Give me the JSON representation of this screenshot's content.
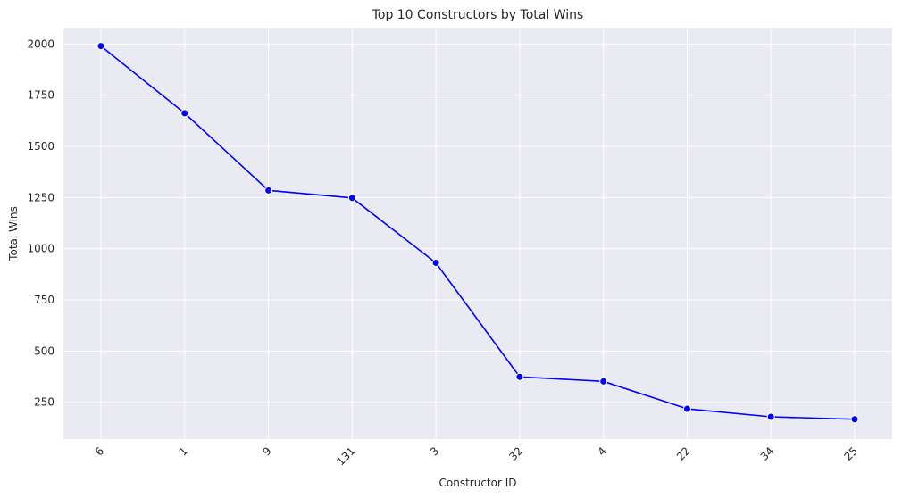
{
  "chart_data": {
    "type": "line",
    "title": "Top 10 Constructors by Total Wins",
    "xlabel": "Constructor ID",
    "ylabel": "Total Wins",
    "categories": [
      "6",
      "1",
      "9",
      "131",
      "3",
      "32",
      "4",
      "22",
      "34",
      "25"
    ],
    "series": [
      {
        "values": [
          1990,
          1662,
          1285,
          1248,
          931,
          374,
          352,
          218,
          179,
          167
        ],
        "color": "#0000ff",
        "marker": "circle"
      }
    ],
    "ylim": [
      70,
      2080
    ],
    "yticks": [
      250,
      500,
      750,
      1000,
      1250,
      1500,
      1750,
      2000
    ],
    "grid": true,
    "x_tick_rotation": 45,
    "background": "#eaeaf2"
  }
}
